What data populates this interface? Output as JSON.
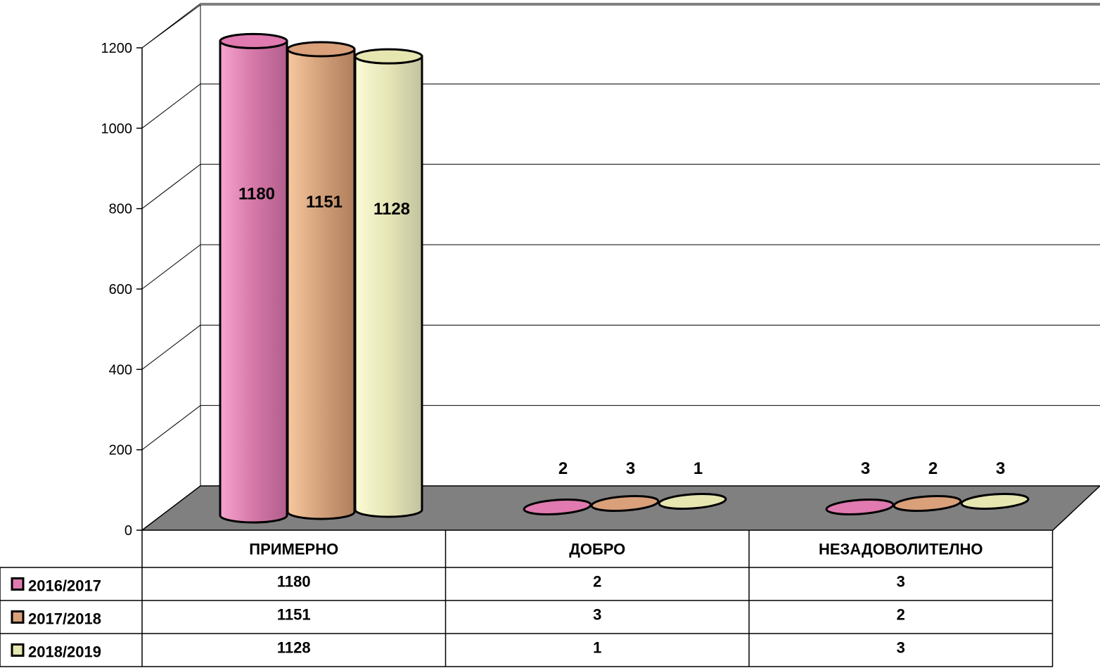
{
  "chart_data": {
    "type": "bar",
    "categories": [
      "ПРИМЕРНО",
      "ДОБРО",
      "НЕЗАДОВОЛИТЕЛНО"
    ],
    "series": [
      {
        "name": "2016/2017",
        "values": [
          1180,
          2,
          3
        ],
        "color": "#e07ab0"
      },
      {
        "name": "2017/2018",
        "values": [
          1151,
          3,
          2
        ],
        "color": "#d9a07a"
      },
      {
        "name": "2018/2019",
        "values": [
          1128,
          1,
          3
        ],
        "color": "#e6e6b0"
      }
    ],
    "yticks": [
      "0",
      "200",
      "400",
      "600",
      "800",
      "1000",
      "1200"
    ],
    "ylim": [
      0,
      1200
    ],
    "grid": true,
    "legend": "data-table-left",
    "floor_color": "#808080"
  }
}
